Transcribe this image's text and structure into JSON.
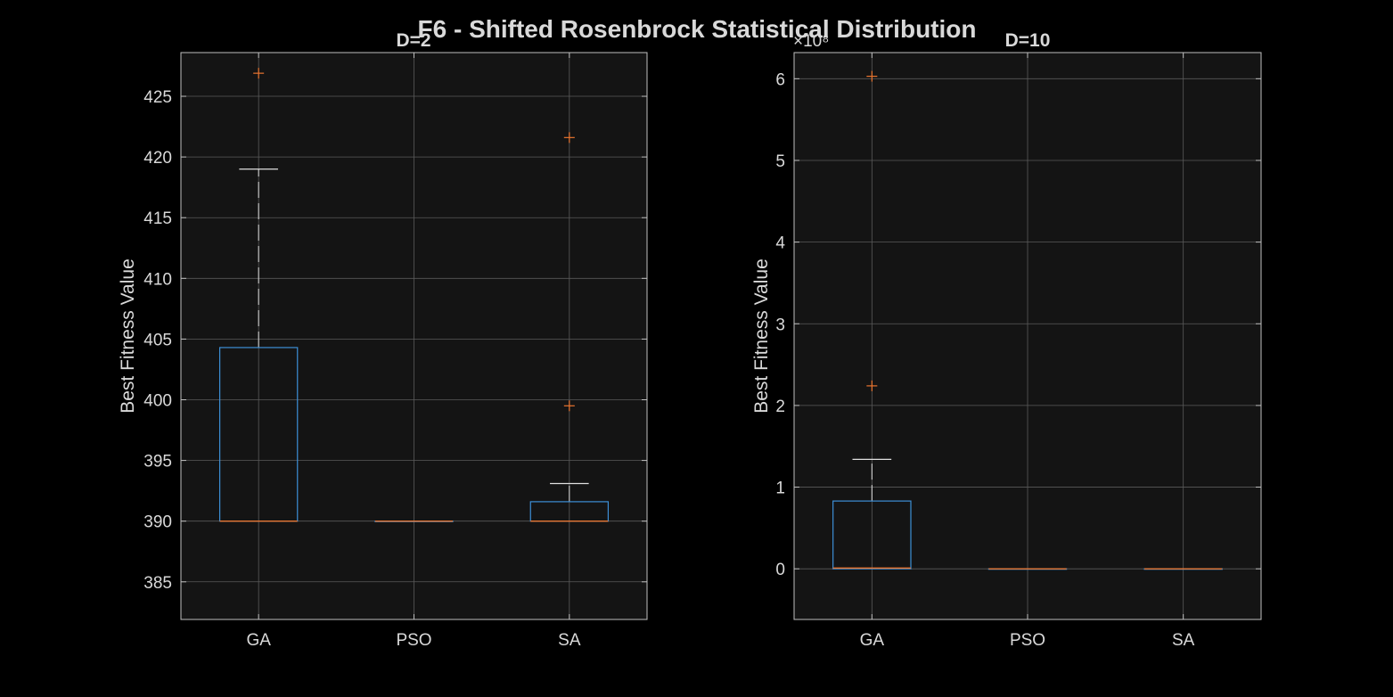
{
  "figure": {
    "title": "F6 - Shifted Rosenbrock Statistical Distribution",
    "background": "#000000",
    "axes_background": "#141414",
    "box_color": "#3d8fd6",
    "median_color": "#e8742f",
    "outlier_color": "#e8742f",
    "whisker_color": "#e0e0e0"
  },
  "chart_data": [
    {
      "type": "box",
      "title": "D=2",
      "xlabel": "",
      "ylabel": "Best Fitness Value",
      "categories": [
        "GA",
        "PSO",
        "SA"
      ],
      "ylim": [
        381.9,
        428.6
      ],
      "yticks": [
        385,
        390,
        395,
        400,
        405,
        410,
        415,
        420,
        425
      ],
      "ytick_labels": [
        "385",
        "390",
        "395",
        "400",
        "405",
        "410",
        "415",
        "420",
        "425"
      ],
      "exponent_label": "",
      "grid": true,
      "boxes": [
        {
          "name": "GA",
          "whisker_low": 390.0,
          "q1": 390.0,
          "median": 390.0,
          "q3": 404.3,
          "whisker_high": 419.0,
          "outliers": [
            426.9
          ]
        },
        {
          "name": "PSO",
          "whisker_low": 390.0,
          "q1": 390.0,
          "median": 390.0,
          "q3": 390.0,
          "whisker_high": 390.0,
          "outliers": []
        },
        {
          "name": "SA",
          "whisker_low": 390.0,
          "q1": 390.0,
          "median": 390.0,
          "q3": 391.6,
          "whisker_high": 393.1,
          "outliers": [
            399.5,
            421.6
          ]
        }
      ]
    },
    {
      "type": "box",
      "title": "D=10",
      "xlabel": "",
      "ylabel": "Best Fitness Value",
      "categories": [
        "GA",
        "PSO",
        "SA"
      ],
      "ylim": [
        -0.62,
        6.32
      ],
      "yticks": [
        0,
        1,
        2,
        3,
        4,
        5,
        6
      ],
      "ytick_labels": [
        "0",
        "1",
        "2",
        "3",
        "4",
        "5",
        "6"
      ],
      "exponent_label": "×10⁸",
      "grid": true,
      "boxes": [
        {
          "name": "GA",
          "whisker_low": 0.0,
          "q1": 0.0,
          "median": 0.01,
          "q3": 0.83,
          "whisker_high": 1.34,
          "outliers": [
            2.24,
            6.03
          ]
        },
        {
          "name": "PSO",
          "whisker_low": 0.0,
          "q1": 0.0,
          "median": 0.0,
          "q3": 0.0,
          "whisker_high": 0.0,
          "outliers": []
        },
        {
          "name": "SA",
          "whisker_low": 0.0,
          "q1": 0.0,
          "median": 0.0,
          "q3": 0.0,
          "whisker_high": 0.0,
          "outliers": []
        }
      ]
    }
  ]
}
